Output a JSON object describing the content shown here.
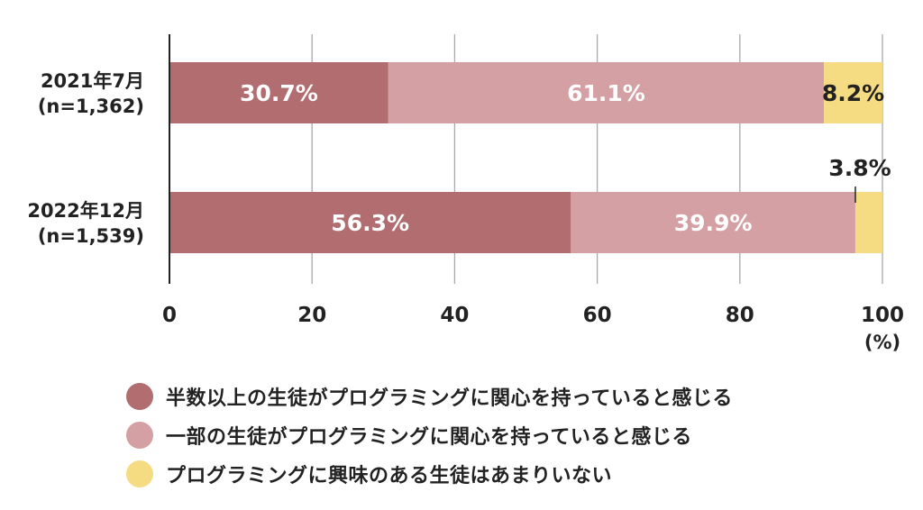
{
  "chart_data": {
    "type": "bar",
    "orientation": "horizontal",
    "stacked": true,
    "categories": [
      {
        "line1": "2021年7月",
        "line2": "(n=1,362)"
      },
      {
        "line1": "2022年12月",
        "line2": "(n=1,539)"
      }
    ],
    "series": [
      {
        "name": "半数以上の生徒がプログラミングに関心を持っていると感じる",
        "color": "#b16d70",
        "values": [
          30.7,
          56.3
        ]
      },
      {
        "name": "一部の生徒がプログラミングに関心を持っていると感じる",
        "color": "#d4a0a3",
        "values": [
          61.1,
          39.9
        ]
      },
      {
        "name": "プログラミングに興味のある生徒はあまりいない",
        "color": "#f5dc82",
        "values": [
          8.2,
          3.8
        ]
      }
    ],
    "data_labels": [
      [
        "30.7%",
        "61.1%",
        "8.2%"
      ],
      [
        "56.3%",
        "39.9%",
        "3.8%"
      ]
    ],
    "xlim": [
      0,
      100
    ],
    "xticks": [
      "0",
      "20",
      "40",
      "60",
      "80",
      "100"
    ],
    "xunit": "(%)",
    "grid": true,
    "legend_position": "bottom"
  }
}
